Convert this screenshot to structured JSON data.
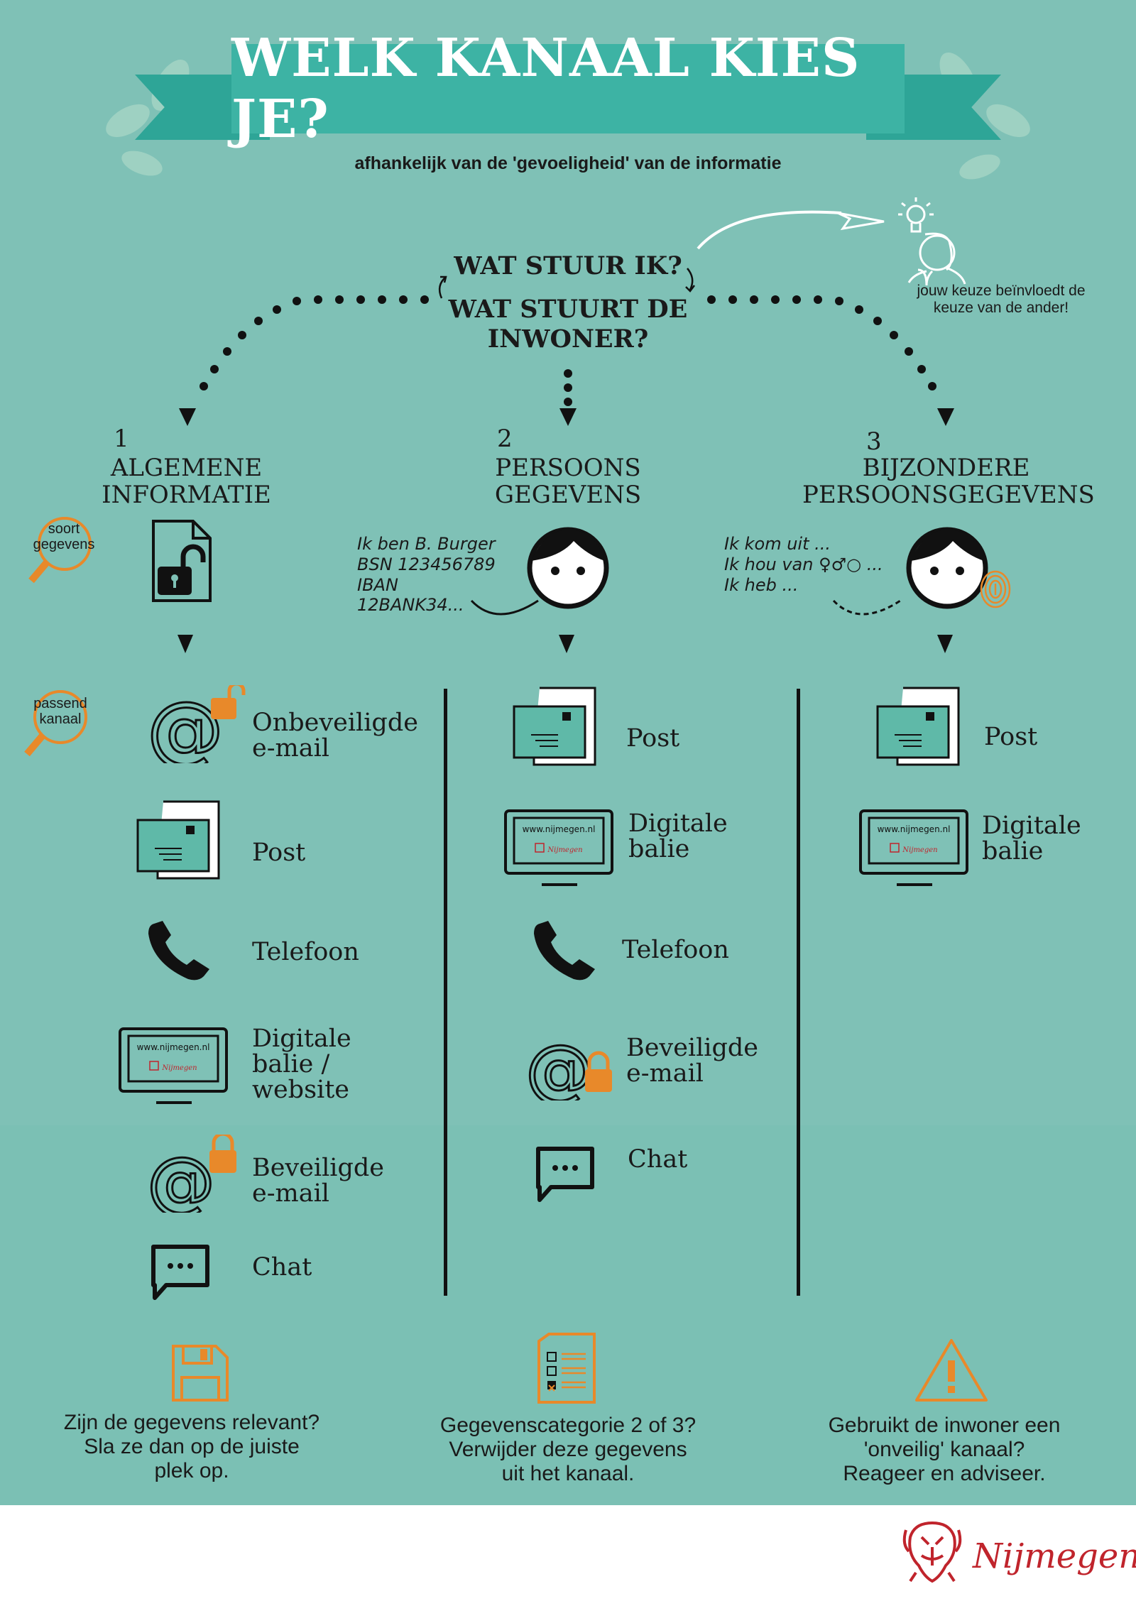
{
  "title": "WELK KANAAL KIES JE?",
  "subtitle": "afhankelijk van de 'gevoeligheid' van de informatie",
  "question": {
    "line1": "WAT STUUR IK?",
    "line2": "WAT STUURT DE",
    "line3": "INWONER?"
  },
  "influence_note": {
    "line1": "jouw keuze beïnvloedt de",
    "line2": "keuze van de ander!"
  },
  "side_tags": {
    "type": {
      "line1": "soort",
      "line2": "gegevens"
    },
    "channel": {
      "line1": "passend",
      "line2": "kanaal"
    }
  },
  "categories": [
    {
      "number": "1",
      "title_line1": "ALGEMENE",
      "title_line2": "INFORMATIE"
    },
    {
      "number": "2",
      "title_line1": "PERSOONS",
      "title_line2": "GEGEVENS",
      "example": [
        "Ik ben B. Burger",
        "BSN 123456789",
        "IBAN",
        "12BANK34..."
      ]
    },
    {
      "number": "3",
      "title_line1": "BIJZONDERE",
      "title_line2": "PERSOONSGEGEVENS",
      "example": [
        "Ik kom uit ...",
        "Ik hou van ♀♂○ ...",
        "Ik heb ..."
      ]
    }
  ],
  "channels": {
    "col1": [
      {
        "icon": "at-unlocked-icon",
        "line1": "Onbeveiligde",
        "line2": "e-mail"
      },
      {
        "icon": "letter-icon",
        "line1": "Post"
      },
      {
        "icon": "phone-icon",
        "line1": "Telefoon"
      },
      {
        "icon": "monitor-icon",
        "line1": "Digitale",
        "line2": "balie /",
        "line3": "website"
      },
      {
        "icon": "at-locked-icon",
        "line1": "Beveiligde",
        "line2": "e-mail"
      },
      {
        "icon": "chat-icon",
        "line1": "Chat"
      }
    ],
    "col2": [
      {
        "icon": "letter-icon",
        "line1": "Post"
      },
      {
        "icon": "monitor-icon",
        "line1": "Digitale",
        "line2": "balie"
      },
      {
        "icon": "phone-icon",
        "line1": "Telefoon"
      },
      {
        "icon": "at-locked-icon",
        "line1": "Beveiligde",
        "line2": "e-mail"
      },
      {
        "icon": "chat-icon",
        "line1": "Chat"
      }
    ],
    "col3": [
      {
        "icon": "letter-icon",
        "line1": "Post"
      },
      {
        "icon": "monitor-icon",
        "line1": "Digitale",
        "line2": "balie"
      }
    ]
  },
  "monitor": {
    "url": "www.nijmegen.nl",
    "brand": "Nijmegen"
  },
  "tips": [
    {
      "icon": "floppy-disk-icon",
      "line1": "Zijn de gegevens relevant?",
      "line2": "Sla ze dan op de juiste",
      "line3": "plek op."
    },
    {
      "icon": "checklist-icon",
      "line1": "Gegevenscategorie 2 of 3?",
      "line2": "Verwijder deze gegevens",
      "line3": "uit het kanaal."
    },
    {
      "icon": "warning-icon",
      "line1": "Gebruikt de inwoner een",
      "line2": "'onveilig' kanaal?",
      "line3": "Reageer en adviseer."
    }
  ],
  "footer_brand": "Nijmegen",
  "colors": {
    "background": "#7fc1b6",
    "banner": "#3db3a4",
    "accent": "#e8892a",
    "brand": "#c0242c"
  }
}
